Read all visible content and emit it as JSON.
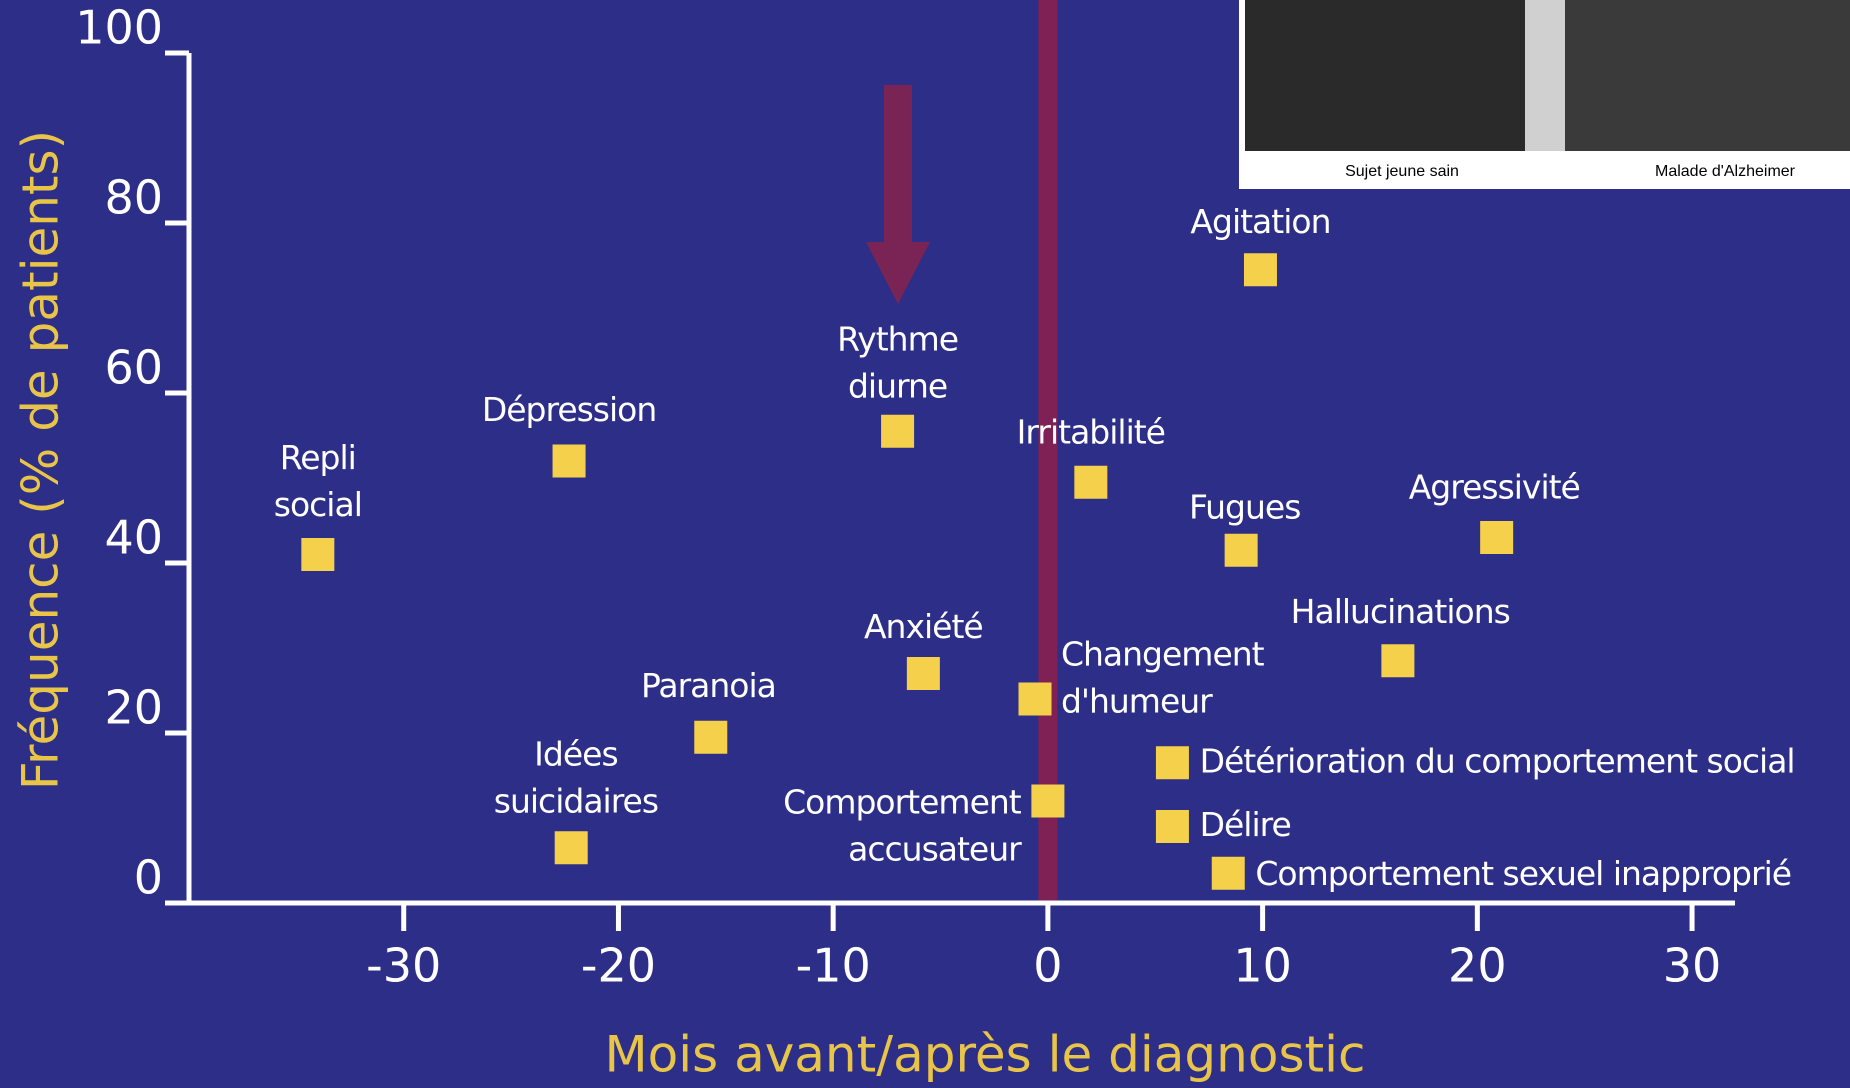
{
  "chart_data": {
    "type": "scatter",
    "xlabel": "Mois avant/après le diagnostic",
    "ylabel": "Fréquence (% de patients)",
    "x": [
      -34,
      -22.3,
      -7,
      2,
      9.9,
      9,
      20.9,
      16.3,
      -5.8,
      -0.6,
      -15.7,
      -22.2,
      0,
      5.8,
      5.8,
      8.4
    ],
    "series": [
      {
        "color": "#f5d04a",
        "values": [
          41,
          52,
          55.5,
          49.5,
          74.5,
          41.5,
          43,
          28.5,
          27,
          24,
          19.5,
          6.5,
          12,
          16.5,
          9,
          3.5
        ]
      }
    ],
    "point_labels": [
      "Repli social",
      "Dépression",
      "Rythme diurne",
      "Irritabilité",
      "Agitation",
      "Fugues",
      "Agressivité",
      "Hallucinations",
      "Anxiété",
      "Changement d'humeur",
      "Paranoia",
      "Idées suicidaires",
      "Comportement accusateur",
      "Détérioration du comportement social",
      "Délire",
      "Comportement sexuel inapproprié"
    ],
    "xlim": [
      -40,
      32
    ],
    "ylim": [
      0,
      100
    ],
    "xticks": [
      -30,
      -20,
      -10,
      0,
      10,
      20,
      30
    ],
    "yticks": [
      0,
      20,
      40,
      60,
      80,
      100
    ],
    "reference_line": {
      "x": 0,
      "color": "#8a2050"
    },
    "inset_captions": [
      "Sujet jeune sain",
      "Malade d'Alzheimer"
    ]
  }
}
